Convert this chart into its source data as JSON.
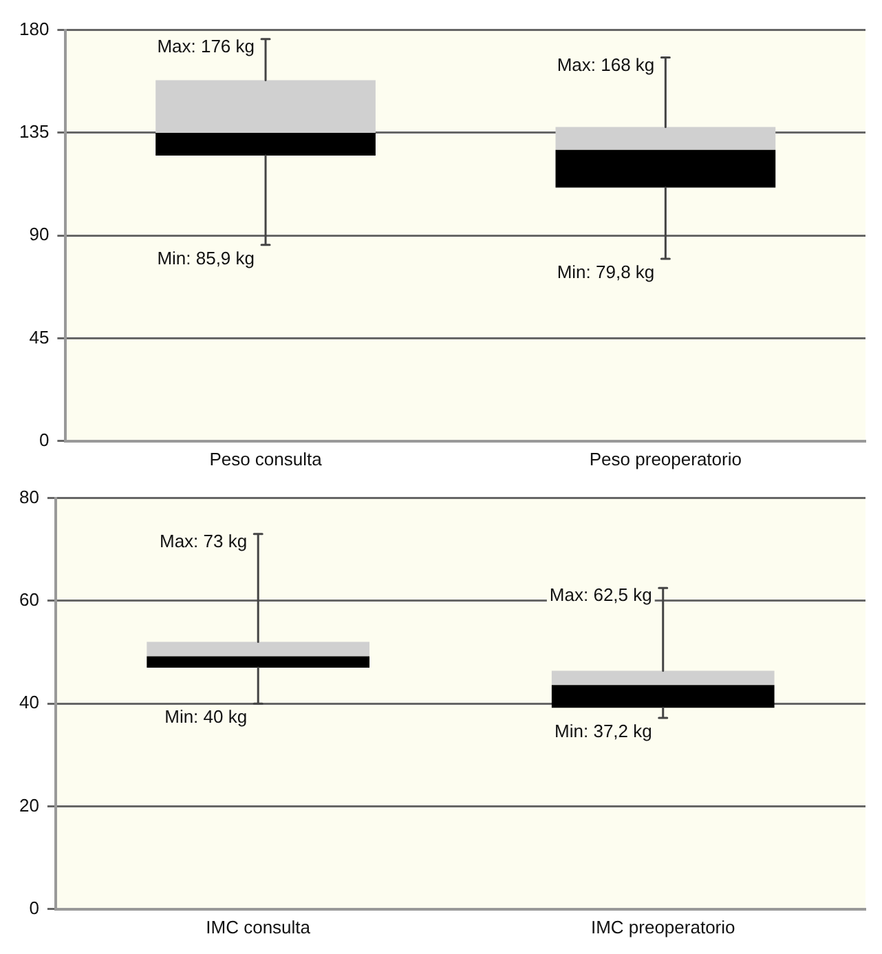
{
  "chart_data": [
    {
      "type": "box",
      "categories": [
        "Peso consulta",
        "Peso preoperatorio"
      ],
      "color": "#000000",
      "boxes": [
        {
          "low": 85.9,
          "q1": 125,
          "median": 135,
          "q3": 158,
          "high": 176
        },
        {
          "low": 79.8,
          "q1": 111,
          "median": 127.5,
          "q3": 137.5,
          "high": 168
        }
      ],
      "ylim": [
        0,
        180
      ],
      "yticks": [
        0,
        45,
        90,
        135,
        180
      ],
      "grid": "y",
      "annotations": [
        {
          "text": "Max: 176 kg",
          "x": "Peso consulta",
          "y": 176
        },
        {
          "text": "Min: 85,9 kg",
          "x": "Peso consulta",
          "y": 85.9
        },
        {
          "text": "Max: 168 kg",
          "x": "Peso preoperatorio",
          "y": 168
        },
        {
          "text": "Min: 79,8 kg",
          "x": "Peso preoperatorio",
          "y": 79.8
        }
      ]
    },
    {
      "type": "box",
      "categories": [
        "IMC consulta",
        "IMC preoperatorio"
      ],
      "color": "#000000",
      "boxes": [
        {
          "low": 40,
          "q1": 47,
          "median": 49.2,
          "q3": 52,
          "high": 73
        },
        {
          "low": 37.2,
          "q1": 39.2,
          "median": 43.6,
          "q3": 46.4,
          "high": 62.5
        }
      ],
      "ylim": [
        0,
        80
      ],
      "yticks": [
        0,
        20,
        40,
        60,
        80
      ],
      "grid": "y",
      "annotations": [
        {
          "text": "Max: 73 kg",
          "x": "IMC consulta",
          "y": 73
        },
        {
          "text": "Min: 40 kg",
          "x": "IMC consulta",
          "y": 40
        },
        {
          "text": "Max: 62,5 kg",
          "x": "IMC preoperatorio",
          "y": 62.5
        },
        {
          "text": "Min: 37,2 kg",
          "x": "IMC preoperatorio",
          "y": 37.2
        }
      ]
    }
  ]
}
